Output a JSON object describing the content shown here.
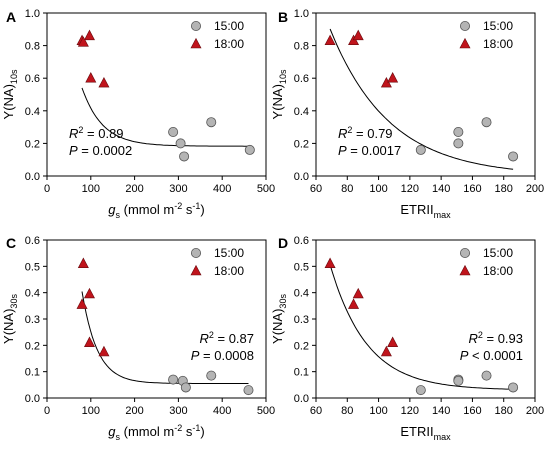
{
  "chart_data": [
    {
      "panel": "A",
      "type": "scatter",
      "xlabel": {
        "main": "g",
        "main_sub": "s",
        "rest": " (mmol m",
        "sup1": "-2",
        "mid": " s",
        "sup2": "-1",
        "end": ")"
      },
      "ylabel": {
        "main": "Y(NA)",
        "sub": "10s"
      },
      "xlim": [
        0,
        500
      ],
      "ylim": [
        0,
        1.0
      ],
      "xticks": [
        "0",
        "100",
        "200",
        "300",
        "400",
        "500"
      ],
      "yticks": [
        "0.0",
        "0.2",
        "0.4",
        "0.6",
        "0.8",
        "1.0"
      ],
      "xtick_values": [
        0,
        100,
        200,
        300,
        400,
        500
      ],
      "ytick_values": [
        0,
        0.2,
        0.4,
        0.6,
        0.8,
        1.0
      ],
      "series": [
        {
          "name": "15:00",
          "marker": "circle",
          "color": "#b4b4b4",
          "x": [
            288,
            305,
            313,
            375,
            463
          ],
          "y": [
            0.27,
            0.2,
            0.12,
            0.33,
            0.16
          ]
        },
        {
          "name": "18:00",
          "marker": "triangle",
          "color": "#c0141c",
          "x": [
            80,
            97,
            100,
            130,
            83
          ],
          "y": [
            0.83,
            0.86,
            0.6,
            0.57,
            0.82
          ]
        }
      ],
      "fit": {
        "form": "exp",
        "a": 1.98,
        "b": -0.0214,
        "c": 0.183,
        "x0": 80,
        "x1": 460
      },
      "stats": {
        "r2_label": "R",
        "r2_sup": "2",
        "r2_value": " = 0.89",
        "p_label": "P",
        "p_value": " = 0.0002"
      },
      "legend_position": "top-right"
    },
    {
      "panel": "B",
      "type": "scatter",
      "xlabel": {
        "main": "ETRII",
        "sub": "max"
      },
      "ylabel": {
        "main": "Y(NA)",
        "sub": "10s"
      },
      "xlim": [
        60,
        200
      ],
      "ylim": [
        0,
        1.0
      ],
      "xticks": [
        "60",
        "80",
        "100",
        "120",
        "140",
        "160",
        "180",
        "200"
      ],
      "yticks": [
        "0.0",
        "0.2",
        "0.4",
        "0.6",
        "0.8",
        "1.0"
      ],
      "xtick_values": [
        60,
        80,
        100,
        120,
        140,
        160,
        180,
        200
      ],
      "ytick_values": [
        0,
        0.2,
        0.4,
        0.6,
        0.8,
        1.0
      ],
      "series": [
        {
          "name": "15:00",
          "marker": "circle",
          "color": "#b4b4b4",
          "x": [
            127,
            151,
            151,
            169,
            186
          ],
          "y": [
            0.16,
            0.27,
            0.2,
            0.33,
            0.12
          ]
        },
        {
          "name": "18:00",
          "marker": "triangle",
          "color": "#c0141c",
          "x": [
            69,
            84,
            87,
            105,
            109
          ],
          "y": [
            0.83,
            0.83,
            0.86,
            0.57,
            0.6
          ]
        }
      ],
      "fit": {
        "form": "exp",
        "a": 5.56,
        "b": -0.02636,
        "c": 0.0,
        "x0": 69,
        "x1": 186
      },
      "stats": {
        "r2_label": "R",
        "r2_sup": "2",
        "r2_value": " = 0.79",
        "p_label": "P",
        "p_value": " = 0.0017"
      },
      "legend_position": "top-right"
    },
    {
      "panel": "C",
      "type": "scatter",
      "xlabel": {
        "main": "g",
        "main_sub": "s",
        "rest": " (mmol m",
        "sup1": "-2",
        "mid": " s",
        "sup2": "-1",
        "end": ")"
      },
      "ylabel": {
        "main": "Y(NA)",
        "sub": "30s"
      },
      "xlim": [
        0,
        500
      ],
      "ylim": [
        0,
        0.6
      ],
      "xticks": [
        "0",
        "100",
        "200",
        "300",
        "400",
        "500"
      ],
      "yticks": [
        "0.0",
        "0.1",
        "0.2",
        "0.3",
        "0.4",
        "0.5",
        "0.6"
      ],
      "xtick_values": [
        0,
        100,
        200,
        300,
        400,
        500
      ],
      "ytick_values": [
        0,
        0.1,
        0.2,
        0.3,
        0.4,
        0.5,
        0.6
      ],
      "series": [
        {
          "name": "15:00",
          "marker": "circle",
          "color": "#b4b4b4",
          "x": [
            288,
            310,
            317,
            375,
            460
          ],
          "y": [
            0.07,
            0.065,
            0.04,
            0.085,
            0.03
          ]
        },
        {
          "name": "18:00",
          "marker": "triangle",
          "color": "#c0141c",
          "x": [
            83,
            80,
            97,
            97,
            130
          ],
          "y": [
            0.51,
            0.355,
            0.395,
            0.21,
            0.175
          ]
        }
      ],
      "fit": {
        "form": "exp",
        "a": 3.5,
        "b": -0.0288,
        "c": 0.055,
        "x0": 80,
        "x1": 460
      },
      "stats": {
        "r2_label": "R",
        "r2_sup": "2",
        "r2_value": " = 0.87",
        "p_label": "P",
        "p_value": " = 0.0008"
      },
      "legend_position": "top-right"
    },
    {
      "panel": "D",
      "type": "scatter",
      "xlabel": {
        "main": "ETRII",
        "sub": "max"
      },
      "ylabel": {
        "main": "Y(NA)",
        "sub": "30s"
      },
      "xlim": [
        60,
        200
      ],
      "ylim": [
        0,
        0.6
      ],
      "xticks": [
        "60",
        "80",
        "100",
        "120",
        "140",
        "160",
        "180",
        "200"
      ],
      "yticks": [
        "0.0",
        "0.1",
        "0.2",
        "0.3",
        "0.4",
        "0.5",
        "0.6"
      ],
      "xtick_values": [
        60,
        80,
        100,
        120,
        140,
        160,
        180,
        200
      ],
      "ytick_values": [
        0,
        0.1,
        0.2,
        0.3,
        0.4,
        0.5,
        0.6
      ],
      "series": [
        {
          "name": "15:00",
          "marker": "circle",
          "color": "#b4b4b4",
          "x": [
            127,
            151,
            151,
            169,
            186
          ],
          "y": [
            0.03,
            0.07,
            0.065,
            0.085,
            0.04
          ]
        },
        {
          "name": "18:00",
          "marker": "triangle",
          "color": "#c0141c",
          "x": [
            69,
            84,
            87,
            105,
            109
          ],
          "y": [
            0.51,
            0.355,
            0.395,
            0.175,
            0.21
          ]
        }
      ],
      "fit": {
        "form": "exp",
        "a": 9.0,
        "b": -0.0426,
        "c": 0.03,
        "x0": 69,
        "x1": 186
      },
      "stats": {
        "r2_label": "R",
        "r2_sup": "2",
        "r2_value": " = 0.93",
        "p_label": "P",
        "p_value": " < 0.0001"
      },
      "legend_position": "top-right"
    }
  ]
}
